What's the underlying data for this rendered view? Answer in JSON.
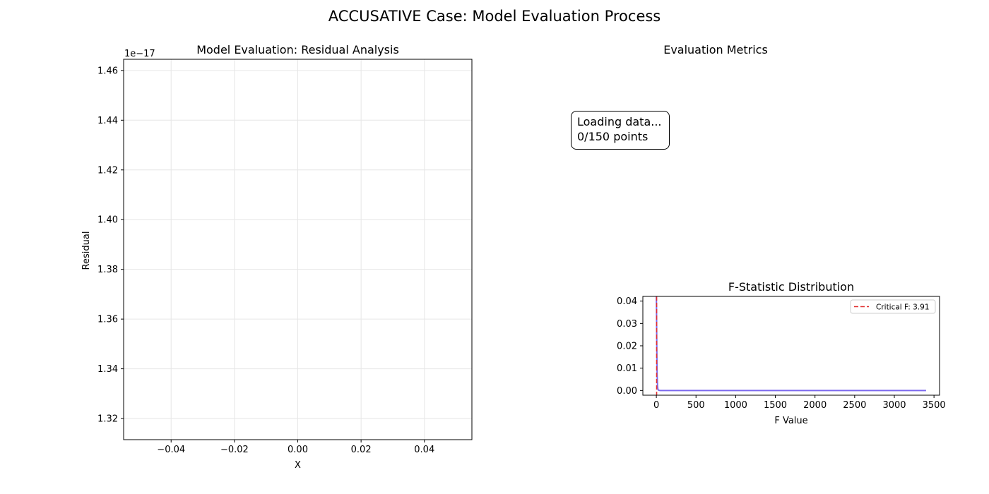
{
  "figure": {
    "title": "ACCUSATIVE Case: Model Evaluation Process"
  },
  "metrics_panel": {
    "title": "Evaluation Metrics",
    "status_line1": "Loading data...",
    "status_line2": "0/150 points"
  },
  "chart_data": [
    {
      "type": "scatter",
      "title": "Model Evaluation: Residual Analysis",
      "xlabel": "X",
      "ylabel": "Residual",
      "x": [],
      "y": [],
      "xlim": [
        -0.055,
        0.055
      ],
      "ylim": [
        1.3115e-17,
        1.4645e-17
      ],
      "xticks": [
        -0.04,
        -0.02,
        0.0,
        0.02,
        0.04
      ],
      "xtick_labels": [
        "−0.04",
        "−0.02",
        "0.00",
        "0.02",
        "0.04"
      ],
      "yticks": [
        1.32,
        1.34,
        1.36,
        1.38,
        1.4,
        1.42,
        1.44,
        1.46
      ],
      "ytick_labels": [
        "1.32",
        "1.34",
        "1.36",
        "1.38",
        "1.40",
        "1.42",
        "1.44",
        "1.46"
      ],
      "y_offset_label": "1e−17",
      "y_scale": 1e-17,
      "grid": true
    },
    {
      "type": "line",
      "title": "F-Statistic Distribution",
      "xlabel": "F Value",
      "ylabel": "",
      "xlim": [
        -170,
        3570
      ],
      "ylim": [
        -0.0021,
        0.0421
      ],
      "xticks": [
        0,
        500,
        1000,
        1500,
        2000,
        2500,
        3000,
        3500
      ],
      "xtick_labels": [
        "0",
        "500",
        "1000",
        "1500",
        "2000",
        "2500",
        "3000",
        "3500"
      ],
      "yticks": [
        0.0,
        0.01,
        0.02,
        0.03,
        0.04
      ],
      "ytick_labels": [
        "0.00",
        "0.01",
        "0.02",
        "0.03",
        "0.04"
      ],
      "series": [
        {
          "color": "#7b68ee",
          "x": [
            0,
            2,
            4,
            6,
            8,
            10,
            15,
            20,
            30,
            50,
            100,
            500,
            1000,
            2000,
            3000,
            3400
          ],
          "y": [
            0.0421,
            0.038,
            0.028,
            0.019,
            0.012,
            0.007,
            0.002,
            0.0005,
            0.0001,
            0,
            0,
            0,
            0,
            0,
            0,
            0
          ]
        }
      ],
      "critical_line": {
        "x": 3.91,
        "label": "Critical F: 3.91",
        "color": "#e03030"
      },
      "legend": "upper right",
      "grid": false
    }
  ]
}
